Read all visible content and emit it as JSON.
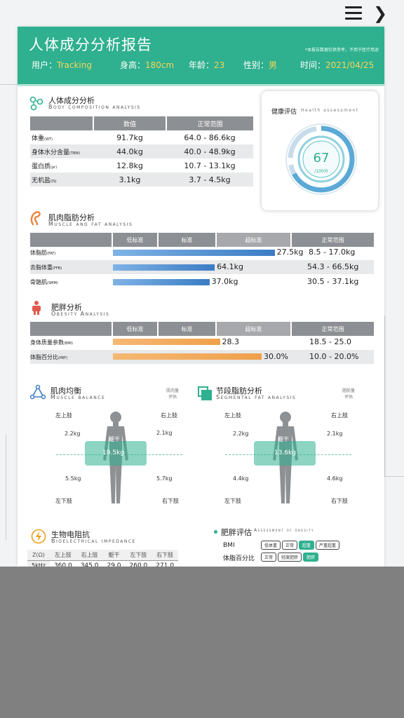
{
  "colors": {
    "brand": "#2fb08f",
    "accent_text": "#f2d65a",
    "bar_blue": "#3a7cc4",
    "bar_orange": "#f0a04b",
    "header_gray": "#8c8f93",
    "overlay": "#808080"
  },
  "nav": {
    "menu_icon": "hamburger-icon",
    "back_icon": "chevron-right-icon",
    "back_glyph": "❯"
  },
  "header": {
    "title": "人体成分分析报告",
    "note": "*本报告数据仅供参考，不用于医疗用途",
    "user_label": "用户：",
    "user_value": "Tracking",
    "height_label": "身高：",
    "height_value": "180cm",
    "age_label": "年龄：",
    "age_value": "23",
    "gender_label": "性别：",
    "gender_value": "男",
    "time_label": "时间：",
    "time_value": "2021/04/25"
  },
  "composition": {
    "title_cn": "人体成分分析",
    "title_en": "Body composition analysis",
    "col_value": "数值",
    "col_range": "正常范围",
    "rows": [
      {
        "label": "体重",
        "unit": "(WT)",
        "value": "91.7kg",
        "range": "64.0 - 86.6kg"
      },
      {
        "label": "身体水分含量",
        "unit": "(TBW)",
        "value": "44.0kg",
        "range": "40.0 - 48.9kg"
      },
      {
        "label": "蛋白质",
        "unit": "(pr)",
        "value": "12.8kg",
        "range": "10.7 - 13.1kg"
      },
      {
        "label": "无机盐",
        "unit": "(IS)",
        "value": "3.1kg",
        "range": "3.7 - 4.5kg"
      }
    ]
  },
  "health": {
    "title_cn": "健康评估",
    "title_en": "Health assessment",
    "score": 67,
    "score_text": "67",
    "unit": "/100分"
  },
  "muscle_fat": {
    "title_cn": "肌肉脂肪分析",
    "title_en": "Muscle and fat analysis",
    "bands": [
      "低标准",
      "标准",
      "超标准",
      "正常范围"
    ],
    "rows": [
      {
        "label": "体脂肪",
        "unit": "(FAT)",
        "value": "27.5kg",
        "range": "8.5 - 17.0kg",
        "fill": 0.62
      },
      {
        "label": "去脂体重",
        "unit": "(FFB)",
        "value": "64.1kg",
        "range": "54.3 - 66.5kg",
        "fill": 0.39
      },
      {
        "label": "骨骼肌",
        "unit": "(SMM)",
        "value": "37.0kg",
        "range": "30.5 - 37.1kg",
        "fill": 0.37
      }
    ]
  },
  "obesity": {
    "title_cn": "肥胖分析",
    "title_en": "Obesity Analysis",
    "bands": [
      "低标准",
      "标准",
      "超标准",
      "正常范围"
    ],
    "rows": [
      {
        "label": "身体质量参数",
        "unit": "(BMI)",
        "value": "28.3",
        "range": "18.5 - 25.0",
        "fill": 0.41
      },
      {
        "label": "体脂百分比",
        "unit": "(PBF)",
        "value": "30.0%",
        "range": "10.0 - 20.0%",
        "fill": 0.57
      }
    ]
  },
  "muscle_balance": {
    "title_cn": "肌肉均衡",
    "title_en": "Muscle balance",
    "side_note_1": "肌肉量",
    "side_note_2": "评估",
    "left_upper": "左上肢",
    "right_upper": "右上肢",
    "left_lower": "左下肢",
    "right_lower": "右下肢",
    "trunk": "躯干",
    "lu_value": "2.2kg",
    "ru_value": "2.1kg",
    "trunk_value": "19.5kg",
    "ll_value": "5.5kg",
    "rl_value": "5.7kg"
  },
  "segmental_fat": {
    "title_cn": "节段脂肪分析",
    "title_en": "Segmental fat analysis",
    "side_note_1": "脂肪量",
    "side_note_2": "评估",
    "left_upper": "左上肢",
    "right_upper": "右上肢",
    "left_lower": "左下肢",
    "right_lower": "右下肢",
    "trunk": "躯干",
    "lu_value": "2.2kg",
    "ru_value": "2.1kg",
    "trunk_value": "13.6kg",
    "ll_value": "4.4kg",
    "rl_value": "4.6kg"
  },
  "impedance": {
    "title_cn": "生物电阻抗",
    "title_en": "Bioelectrical impedance",
    "headers": [
      "Z(Ω)",
      "左上肢",
      "右上肢",
      "躯干",
      "左下肢",
      "右下肢"
    ],
    "row": [
      "5kHz",
      "360.0",
      "345.0",
      "29.0",
      "260.0",
      "271.0"
    ]
  },
  "obesity_assessment": {
    "title_cn": "肥胖评估",
    "title_en": "Assessment of obesity",
    "bmi_label": "BMI",
    "bmi_options": [
      "低体重",
      "正常",
      "超重",
      "严重超重"
    ],
    "bmi_selected": 2,
    "pbf_label": "体脂百分比",
    "pbf_options": [
      "正常",
      "轻度肥胖",
      "肥胖"
    ],
    "pbf_selected": 2
  }
}
